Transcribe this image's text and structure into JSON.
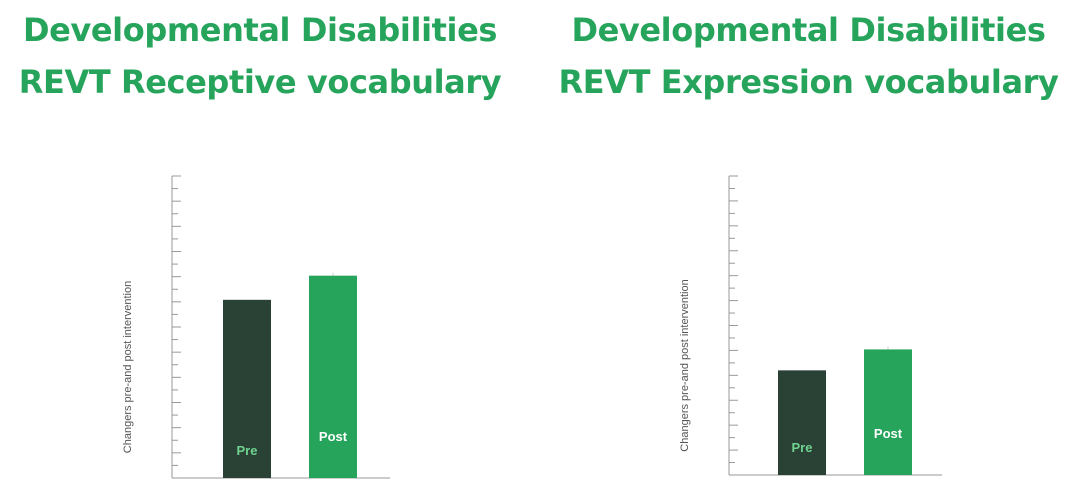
{
  "chart_data": [
    {
      "type": "bar",
      "title": "Developmental Disabilities\nREVT Receptive vocabulary",
      "title_lines": [
        "Developmental Disabilities",
        "REVT Receptive vocabulary"
      ],
      "ylabel": "Changers pre-and post intervention",
      "xlabel": "",
      "categories": [
        "Pre",
        "Post"
      ],
      "values": [
        0.59,
        0.67
      ],
      "ylim": [
        0,
        1
      ],
      "tick_count": 25,
      "grid": false,
      "colors": [
        "#2a4135",
        "#27a45c"
      ],
      "label_colors": [
        "#6fd38f",
        "#ffffff"
      ]
    },
    {
      "type": "bar",
      "title": "Developmental Disabilities\nREVT Expression vocabulary",
      "title_lines": [
        "Developmental Disabilities",
        "REVT Expression vocabulary"
      ],
      "ylabel": "Changers pre-and post intervention",
      "xlabel": "",
      "categories": [
        "Pre",
        "Post"
      ],
      "values": [
        0.35,
        0.42
      ],
      "ylim": [
        0,
        1
      ],
      "tick_count": 25,
      "grid": false,
      "colors": [
        "#2a4135",
        "#27a45c"
      ],
      "label_colors": [
        "#6fd38f",
        "#ffffff"
      ]
    }
  ],
  "theme": {
    "title_color": "#27a45c",
    "axis_color": "#999999"
  }
}
